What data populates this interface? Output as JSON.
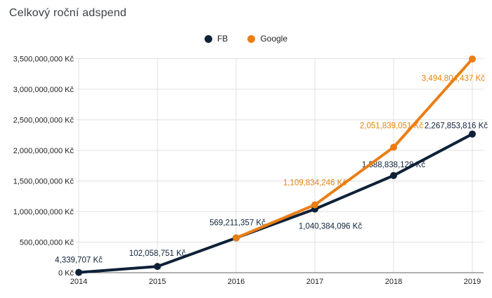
{
  "title": "Celkový roční adspend",
  "legend": {
    "items": [
      {
        "label": "FB",
        "color": "#0E2137"
      },
      {
        "label": "Google",
        "color": "#EA7E16"
      }
    ]
  },
  "chart_data": {
    "type": "line",
    "title": "Celkový roční adspend",
    "x": [
      "2014",
      "2015",
      "2016",
      "2017",
      "2018",
      "2019"
    ],
    "currency": "Kč",
    "grid": true,
    "legend_position": "top",
    "series": [
      {
        "name": "FB",
        "color": "#0E2137",
        "values": [
          4339707,
          102058751,
          569211357,
          1040384096,
          1588838128,
          2267853816
        ],
        "point_labels": [
          "4,339,707 Kč",
          "102,058,751 Kč",
          "569,211,357 Kč",
          "1,040,384,096 Kč",
          "1,588,838,128 Kč",
          "2,267,853,816 Kč"
        ]
      },
      {
        "name": "Google",
        "color": "#EA7E16",
        "label_color": "#E8820C",
        "values": [
          null,
          null,
          569211357,
          1109834246,
          2051839051,
          3494804437
        ],
        "point_labels": [
          null,
          null,
          null,
          "1,109,834,246 Kč",
          "2,051,839,051 Kč",
          "3,494,804,437 Kč"
        ]
      }
    ],
    "y_axis": {
      "min": 0,
      "max": 3500000000,
      "step": 500000000,
      "tick_labels": [
        "0 Kč",
        "500,000,000 Kč",
        "1,000,000,000 Kč",
        "1,500,000,000 Kč",
        "2,000,000,000 Kč",
        "2,500,000,000 Kč",
        "3,000,000,000 Kč",
        "3,500,000,000 Kč"
      ]
    },
    "x_axis": {
      "tick_labels": [
        "2014",
        "2015",
        "2016",
        "2017",
        "2018",
        "2019"
      ]
    }
  }
}
